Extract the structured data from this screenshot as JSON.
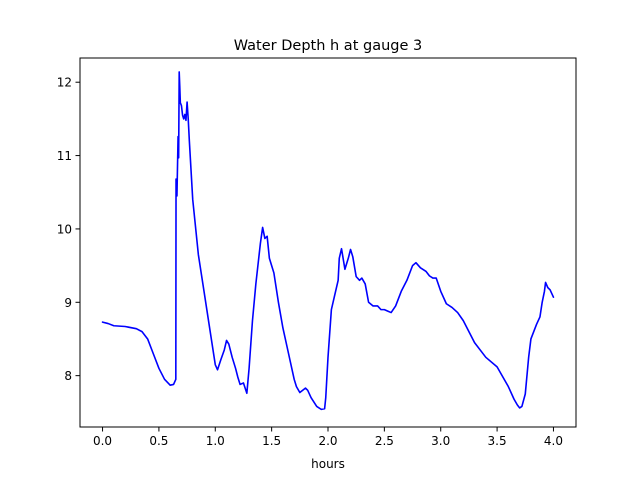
{
  "chart_data": {
    "type": "line",
    "title": "Water Depth h at gauge 3",
    "xlabel": "hours",
    "ylabel": "",
    "xlim": [
      -0.2,
      4.2
    ],
    "ylim": [
      7.3,
      12.33
    ],
    "xticks": [
      0.0,
      0.5,
      1.0,
      1.5,
      2.0,
      2.5,
      3.0,
      3.5,
      4.0
    ],
    "xtick_labels": [
      "0.0",
      "0.5",
      "1.0",
      "1.5",
      "2.0",
      "2.5",
      "3.0",
      "3.5",
      "4.0"
    ],
    "yticks": [
      8,
      9,
      10,
      11,
      12
    ],
    "ytick_labels": [
      "8",
      "9",
      "10",
      "11",
      "12"
    ],
    "grid": false,
    "legend": "none",
    "series": [
      {
        "color": "#0000ff",
        "x": [
          0.0,
          0.05,
          0.1,
          0.2,
          0.3,
          0.35,
          0.4,
          0.45,
          0.5,
          0.55,
          0.6,
          0.63,
          0.65,
          0.652,
          0.66,
          0.67,
          0.675,
          0.68,
          0.685,
          0.69,
          0.7,
          0.71,
          0.72,
          0.73,
          0.74,
          0.75,
          0.76,
          0.77,
          0.8,
          0.82,
          0.85,
          0.88,
          0.9,
          0.95,
          1.0,
          1.02,
          1.05,
          1.08,
          1.1,
          1.12,
          1.15,
          1.18,
          1.2,
          1.22,
          1.25,
          1.28,
          1.3,
          1.33,
          1.36,
          1.4,
          1.42,
          1.44,
          1.46,
          1.48,
          1.5,
          1.52,
          1.54,
          1.56,
          1.6,
          1.65,
          1.7,
          1.72,
          1.75,
          1.8,
          1.82,
          1.85,
          1.9,
          1.94,
          1.97,
          1.98,
          2.0,
          2.03,
          2.06,
          2.09,
          2.1,
          2.12,
          2.15,
          2.18,
          2.2,
          2.22,
          2.25,
          2.28,
          2.3,
          2.33,
          2.36,
          2.4,
          2.44,
          2.47,
          2.5,
          2.53,
          2.56,
          2.6,
          2.65,
          2.7,
          2.75,
          2.78,
          2.82,
          2.87,
          2.9,
          2.93,
          2.96,
          3.0,
          3.05,
          3.1,
          3.15,
          3.2,
          3.3,
          3.4,
          3.5,
          3.6,
          3.65,
          3.68,
          3.7,
          3.72,
          3.75,
          3.78,
          3.8,
          3.85,
          3.88,
          3.9,
          3.92,
          3.93,
          3.95,
          3.97,
          4.0
        ],
        "y": [
          8.73,
          8.71,
          8.68,
          8.67,
          8.64,
          8.6,
          8.5,
          8.3,
          8.1,
          7.95,
          7.87,
          7.88,
          7.95,
          10.68,
          10.45,
          11.26,
          10.97,
          12.14,
          11.95,
          11.72,
          11.68,
          11.55,
          11.5,
          11.56,
          11.48,
          11.73,
          11.5,
          11.2,
          10.4,
          10.1,
          9.65,
          9.35,
          9.15,
          8.65,
          8.15,
          8.08,
          8.22,
          8.35,
          8.48,
          8.43,
          8.25,
          8.1,
          7.98,
          7.88,
          7.9,
          7.76,
          8.1,
          8.75,
          9.25,
          9.8,
          10.02,
          9.87,
          9.9,
          9.6,
          9.5,
          9.4,
          9.2,
          9.0,
          8.65,
          8.3,
          7.95,
          7.85,
          7.77,
          7.83,
          7.8,
          7.7,
          7.58,
          7.54,
          7.55,
          7.7,
          8.25,
          8.9,
          9.1,
          9.3,
          9.6,
          9.73,
          9.45,
          9.6,
          9.72,
          9.62,
          9.35,
          9.3,
          9.33,
          9.25,
          9.0,
          8.95,
          8.95,
          8.9,
          8.9,
          8.88,
          8.86,
          8.95,
          9.15,
          9.3,
          9.5,
          9.54,
          9.47,
          9.42,
          9.36,
          9.33,
          9.33,
          9.15,
          8.98,
          8.93,
          8.86,
          8.75,
          8.45,
          8.25,
          8.12,
          7.85,
          7.68,
          7.6,
          7.56,
          7.58,
          7.75,
          8.25,
          8.5,
          8.7,
          8.8,
          9.0,
          9.15,
          9.27,
          9.2,
          9.17,
          9.07
        ]
      }
    ]
  }
}
